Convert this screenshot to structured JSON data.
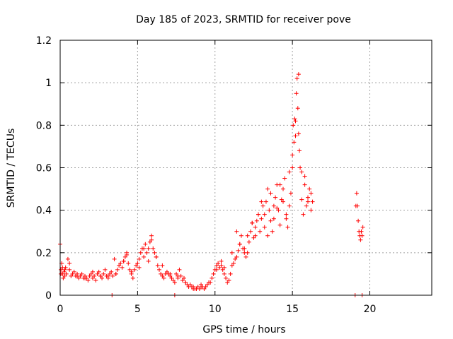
{
  "chart_data": {
    "type": "scatter",
    "title": "Day 185 of 2023, SRMTID for receiver pove",
    "xlabel": "GPS time / hours",
    "ylabel": "SRMTID / TECUs",
    "xlim": [
      0,
      24
    ],
    "ylim": [
      0,
      1.2
    ],
    "xticks": [
      0,
      5,
      10,
      15,
      20
    ],
    "yticks": [
      0,
      0.2,
      0.4,
      0.6,
      0.8,
      1,
      1.2
    ],
    "xtick_labels": [
      "0",
      "5",
      "10",
      "15",
      "20"
    ],
    "ytick_labels": [
      "0",
      "0.2",
      "0.4",
      "0.6",
      "0.8",
      "1",
      "1.2"
    ],
    "grid": true,
    "marker": "+",
    "color": "#ff0000",
    "series": [
      {
        "name": "SRMTID",
        "x": [
          0.0,
          0.05,
          0.1,
          0.15,
          0.2,
          0.25,
          0.3,
          0.35,
          0.4,
          0.5,
          0.6,
          0.7,
          0.8,
          0.9,
          1.0,
          1.1,
          1.2,
          1.3,
          1.4,
          1.5,
          1.6,
          1.7,
          1.8,
          1.9,
          2.0,
          2.1,
          2.2,
          2.3,
          2.4,
          2.5,
          2.6,
          2.7,
          2.8,
          2.9,
          3.0,
          3.1,
          3.2,
          3.3,
          3.4,
          3.5,
          3.6,
          3.7,
          3.8,
          3.9,
          4.0,
          4.1,
          4.2,
          4.3,
          4.4,
          4.5,
          4.6,
          4.7,
          4.8,
          4.9,
          5.0,
          5.1,
          5.2,
          5.3,
          5.4,
          5.5,
          5.6,
          5.7,
          5.8,
          5.9,
          6.0,
          6.1,
          6.2,
          6.3,
          6.4,
          6.5,
          6.6,
          6.7,
          6.8,
          6.9,
          7.0,
          7.1,
          7.2,
          7.3,
          7.4,
          7.5,
          7.6,
          7.7,
          7.8,
          7.9,
          8.0,
          8.1,
          8.2,
          8.3,
          8.4,
          8.5,
          8.6,
          8.7,
          8.8,
          8.9,
          9.0,
          9.1,
          9.2,
          9.3,
          9.4,
          9.5,
          9.6,
          9.7,
          9.8,
          9.9,
          10.0,
          10.1,
          10.2,
          10.3,
          10.4,
          10.5,
          10.6,
          10.7,
          10.8,
          10.9,
          11.0,
          11.1,
          11.2,
          11.3,
          11.4,
          11.5,
          11.6,
          11.7,
          11.8,
          11.9,
          12.0,
          12.1,
          12.2,
          12.3,
          12.4,
          12.5,
          12.6,
          12.7,
          12.8,
          12.9,
          13.0,
          13.1,
          13.2,
          13.3,
          13.4,
          13.5,
          13.6,
          13.7,
          13.8,
          13.9,
          14.0,
          14.1,
          14.2,
          14.3,
          14.4,
          14.5,
          14.6,
          14.7,
          14.8,
          14.9,
          15.0,
          15.05,
          15.1,
          15.15,
          15.2,
          15.25,
          15.3,
          15.35,
          15.4,
          15.45,
          15.5,
          15.6,
          15.7,
          15.8,
          15.9,
          16.0,
          16.1,
          16.2,
          16.3,
          19.1,
          19.15,
          19.2,
          19.25,
          19.3,
          19.35,
          19.4,
          19.45,
          19.5,
          19.55,
          0.05,
          0.15,
          0.3,
          0.6,
          1.1,
          1.6,
          2.1,
          2.6,
          3.1,
          3.6,
          4.1,
          4.3,
          4.6,
          5.1,
          5.4,
          5.7,
          5.9,
          6.2,
          6.6,
          7.1,
          7.6,
          8.1,
          8.6,
          9.1,
          9.6,
          10.1,
          10.4,
          10.6,
          11.1,
          11.4,
          11.6,
          11.9,
          12.1,
          12.4,
          12.6,
          12.8,
          13.0,
          13.2,
          13.4,
          13.6,
          13.8,
          14.0,
          14.2,
          14.4,
          14.6,
          14.8,
          15.0,
          15.2,
          15.4,
          15.6,
          15.8,
          16.0,
          16.2,
          3.35,
          7.4,
          19.05,
          19.5
        ],
        "y": [
          0.24,
          0.12,
          0.15,
          0.1,
          0.08,
          0.11,
          0.09,
          0.13,
          0.1,
          0.17,
          0.12,
          0.09,
          0.1,
          0.11,
          0.09,
          0.1,
          0.08,
          0.09,
          0.1,
          0.08,
          0.09,
          0.08,
          0.07,
          0.09,
          0.1,
          0.08,
          0.09,
          0.07,
          0.1,
          0.11,
          0.09,
          0.08,
          0.1,
          0.12,
          0.09,
          0.08,
          0.1,
          0.11,
          0.09,
          0.17,
          0.1,
          0.12,
          0.14,
          0.15,
          0.13,
          0.16,
          0.18,
          0.2,
          0.15,
          0.12,
          0.1,
          0.08,
          0.12,
          0.14,
          0.15,
          0.17,
          0.2,
          0.22,
          0.18,
          0.24,
          0.2,
          0.22,
          0.25,
          0.28,
          0.22,
          0.2,
          0.18,
          0.14,
          0.12,
          0.1,
          0.09,
          0.08,
          0.1,
          0.11,
          0.1,
          0.09,
          0.08,
          0.07,
          0.06,
          0.1,
          0.08,
          0.12,
          0.09,
          0.07,
          0.08,
          0.06,
          0.05,
          0.04,
          0.05,
          0.04,
          0.03,
          0.03,
          0.03,
          0.04,
          0.03,
          0.05,
          0.04,
          0.03,
          0.04,
          0.05,
          0.06,
          0.06,
          0.08,
          0.1,
          0.12,
          0.14,
          0.15,
          0.13,
          0.14,
          0.12,
          0.1,
          0.08,
          0.06,
          0.07,
          0.1,
          0.14,
          0.15,
          0.17,
          0.18,
          0.21,
          0.24,
          0.28,
          0.22,
          0.2,
          0.18,
          0.2,
          0.25,
          0.3,
          0.34,
          0.27,
          0.32,
          0.35,
          0.38,
          0.3,
          0.36,
          0.42,
          0.38,
          0.44,
          0.5,
          0.4,
          0.35,
          0.3,
          0.42,
          0.46,
          0.52,
          0.4,
          0.33,
          0.45,
          0.5,
          0.55,
          0.38,
          0.32,
          0.42,
          0.48,
          0.6,
          0.8,
          0.72,
          0.83,
          0.75,
          0.95,
          1.02,
          0.88,
          0.76,
          0.68,
          0.6,
          0.45,
          0.38,
          0.52,
          0.42,
          0.46,
          0.5,
          0.48,
          0.44,
          0.42,
          0.48,
          0.42,
          0.35,
          0.3,
          0.28,
          0.26,
          0.3,
          0.28,
          0.32,
          0.1,
          0.13,
          0.12,
          0.15,
          0.09,
          0.08,
          0.11,
          0.09,
          0.09,
          0.1,
          0.16,
          0.19,
          0.11,
          0.13,
          0.22,
          0.16,
          0.26,
          0.18,
          0.14,
          0.1,
          0.09,
          0.06,
          0.04,
          0.04,
          0.06,
          0.12,
          0.16,
          0.13,
          0.2,
          0.3,
          0.24,
          0.22,
          0.28,
          0.34,
          0.28,
          0.38,
          0.44,
          0.32,
          0.28,
          0.48,
          0.36,
          0.41,
          0.52,
          0.44,
          0.36,
          0.58,
          0.66,
          0.82,
          1.04,
          0.58,
          0.56,
          0.44,
          0.4,
          0.0,
          0.0,
          0.0,
          0.0
        ]
      }
    ]
  }
}
